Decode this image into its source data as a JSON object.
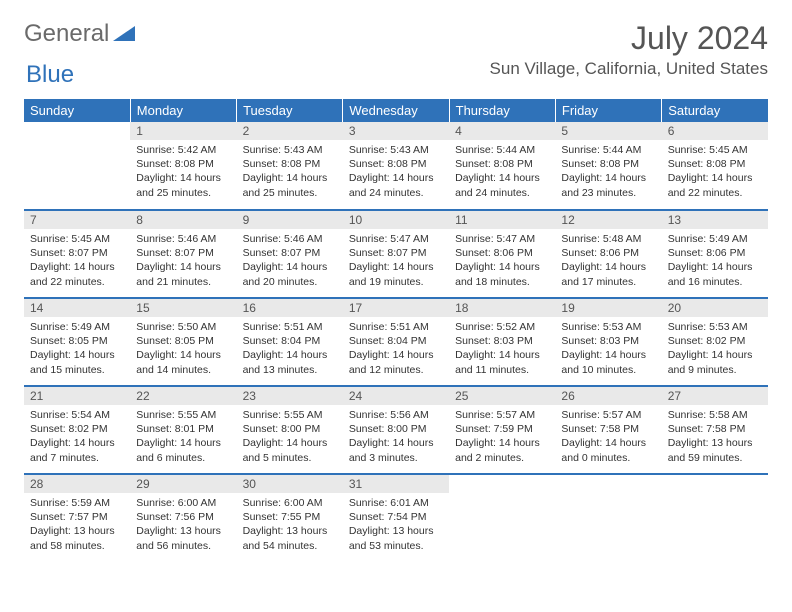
{
  "logo": {
    "text1": "General",
    "text2": "Blue"
  },
  "header": {
    "title": "July 2024",
    "location": "Sun Village, California, United States"
  },
  "colors": {
    "accent": "#2f72b9",
    "header_bg": "#2f72b9",
    "daynum_bg": "#e9e9e9",
    "text": "#333333",
    "muted": "#555555"
  },
  "weekdays": [
    "Sunday",
    "Monday",
    "Tuesday",
    "Wednesday",
    "Thursday",
    "Friday",
    "Saturday"
  ],
  "weeks": [
    [
      null,
      {
        "n": "1",
        "sr": "5:42 AM",
        "ss": "8:08 PM",
        "dl": "14 hours and 25 minutes."
      },
      {
        "n": "2",
        "sr": "5:43 AM",
        "ss": "8:08 PM",
        "dl": "14 hours and 25 minutes."
      },
      {
        "n": "3",
        "sr": "5:43 AM",
        "ss": "8:08 PM",
        "dl": "14 hours and 24 minutes."
      },
      {
        "n": "4",
        "sr": "5:44 AM",
        "ss": "8:08 PM",
        "dl": "14 hours and 24 minutes."
      },
      {
        "n": "5",
        "sr": "5:44 AM",
        "ss": "8:08 PM",
        "dl": "14 hours and 23 minutes."
      },
      {
        "n": "6",
        "sr": "5:45 AM",
        "ss": "8:08 PM",
        "dl": "14 hours and 22 minutes."
      }
    ],
    [
      {
        "n": "7",
        "sr": "5:45 AM",
        "ss": "8:07 PM",
        "dl": "14 hours and 22 minutes."
      },
      {
        "n": "8",
        "sr": "5:46 AM",
        "ss": "8:07 PM",
        "dl": "14 hours and 21 minutes."
      },
      {
        "n": "9",
        "sr": "5:46 AM",
        "ss": "8:07 PM",
        "dl": "14 hours and 20 minutes."
      },
      {
        "n": "10",
        "sr": "5:47 AM",
        "ss": "8:07 PM",
        "dl": "14 hours and 19 minutes."
      },
      {
        "n": "11",
        "sr": "5:47 AM",
        "ss": "8:06 PM",
        "dl": "14 hours and 18 minutes."
      },
      {
        "n": "12",
        "sr": "5:48 AM",
        "ss": "8:06 PM",
        "dl": "14 hours and 17 minutes."
      },
      {
        "n": "13",
        "sr": "5:49 AM",
        "ss": "8:06 PM",
        "dl": "14 hours and 16 minutes."
      }
    ],
    [
      {
        "n": "14",
        "sr": "5:49 AM",
        "ss": "8:05 PM",
        "dl": "14 hours and 15 minutes."
      },
      {
        "n": "15",
        "sr": "5:50 AM",
        "ss": "8:05 PM",
        "dl": "14 hours and 14 minutes."
      },
      {
        "n": "16",
        "sr": "5:51 AM",
        "ss": "8:04 PM",
        "dl": "14 hours and 13 minutes."
      },
      {
        "n": "17",
        "sr": "5:51 AM",
        "ss": "8:04 PM",
        "dl": "14 hours and 12 minutes."
      },
      {
        "n": "18",
        "sr": "5:52 AM",
        "ss": "8:03 PM",
        "dl": "14 hours and 11 minutes."
      },
      {
        "n": "19",
        "sr": "5:53 AM",
        "ss": "8:03 PM",
        "dl": "14 hours and 10 minutes."
      },
      {
        "n": "20",
        "sr": "5:53 AM",
        "ss": "8:02 PM",
        "dl": "14 hours and 9 minutes."
      }
    ],
    [
      {
        "n": "21",
        "sr": "5:54 AM",
        "ss": "8:02 PM",
        "dl": "14 hours and 7 minutes."
      },
      {
        "n": "22",
        "sr": "5:55 AM",
        "ss": "8:01 PM",
        "dl": "14 hours and 6 minutes."
      },
      {
        "n": "23",
        "sr": "5:55 AM",
        "ss": "8:00 PM",
        "dl": "14 hours and 5 minutes."
      },
      {
        "n": "24",
        "sr": "5:56 AM",
        "ss": "8:00 PM",
        "dl": "14 hours and 3 minutes."
      },
      {
        "n": "25",
        "sr": "5:57 AM",
        "ss": "7:59 PM",
        "dl": "14 hours and 2 minutes."
      },
      {
        "n": "26",
        "sr": "5:57 AM",
        "ss": "7:58 PM",
        "dl": "14 hours and 0 minutes."
      },
      {
        "n": "27",
        "sr": "5:58 AM",
        "ss": "7:58 PM",
        "dl": "13 hours and 59 minutes."
      }
    ],
    [
      {
        "n": "28",
        "sr": "5:59 AM",
        "ss": "7:57 PM",
        "dl": "13 hours and 58 minutes."
      },
      {
        "n": "29",
        "sr": "6:00 AM",
        "ss": "7:56 PM",
        "dl": "13 hours and 56 minutes."
      },
      {
        "n": "30",
        "sr": "6:00 AM",
        "ss": "7:55 PM",
        "dl": "13 hours and 54 minutes."
      },
      {
        "n": "31",
        "sr": "6:01 AM",
        "ss": "7:54 PM",
        "dl": "13 hours and 53 minutes."
      },
      null,
      null,
      null
    ]
  ],
  "labels": {
    "sunrise": "Sunrise:",
    "sunset": "Sunset:",
    "daylight": "Daylight:"
  }
}
